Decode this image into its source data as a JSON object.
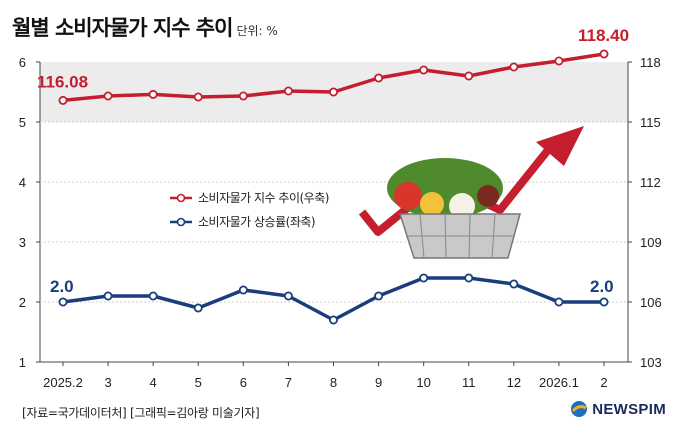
{
  "header": {
    "title": "월별 소비자물가 지수 추이",
    "unit": "단위: %"
  },
  "footer": {
    "source": "[자료=국가데이터처] [그래픽=김아랑 미술기자]",
    "brand": "NEWSPIM"
  },
  "colors": {
    "red": "#c41e2f",
    "blue": "#1a3d7c",
    "shade": "#ececec"
  },
  "chart_data": {
    "type": "line",
    "categories": [
      "2025.2",
      "3",
      "4",
      "5",
      "6",
      "7",
      "8",
      "9",
      "10",
      "11",
      "12",
      "2026.1",
      "2"
    ],
    "series": [
      {
        "name": "소비자물가 지수 추이(우축)",
        "axis": "right",
        "color": "#c41e2f",
        "values": [
          116.08,
          116.3,
          116.38,
          116.25,
          116.3,
          116.55,
          116.5,
          117.2,
          117.6,
          117.3,
          117.75,
          118.05,
          118.4
        ]
      },
      {
        "name": "소비자물가 상승률(좌축)",
        "axis": "left",
        "color": "#1a3d7c",
        "values": [
          2.0,
          2.1,
          2.1,
          1.9,
          2.2,
          2.1,
          1.7,
          2.1,
          2.4,
          2.4,
          2.3,
          2.0,
          2.0
        ]
      }
    ],
    "left_axis": {
      "ylim": [
        1,
        6
      ],
      "ticks": [
        "1",
        "2",
        "3",
        "4",
        "5",
        "6"
      ]
    },
    "right_axis": {
      "ylim": [
        103,
        118
      ],
      "ticks": [
        "103",
        "106",
        "109",
        "112",
        "115",
        "118"
      ]
    },
    "data_labels": {
      "red_first": "116.08",
      "red_last": "118.40",
      "blue_first": "2.0",
      "blue_last": "2.0"
    }
  }
}
